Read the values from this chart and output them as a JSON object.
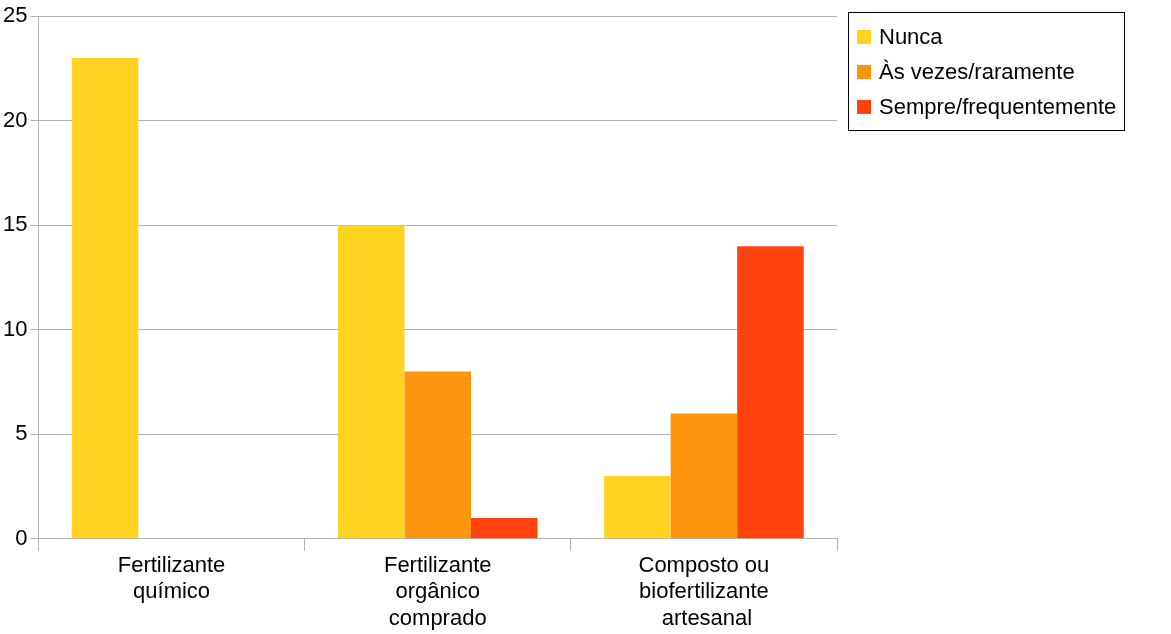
{
  "chart_data": {
    "type": "bar",
    "categories": [
      "Fertilizante\nquímico",
      "Fertilizante\norgânico\ncomprado",
      "Composto ou\nbiofertilizante\n artesanal"
    ],
    "series": [
      {
        "name": "Nunca",
        "color": "#ffd320",
        "values": [
          23,
          15,
          3
        ]
      },
      {
        "name": "Às vezes/raramente",
        "color": "#ff950e",
        "values": [
          0,
          8,
          6
        ]
      },
      {
        "name": "Sempre/frequentemente",
        "color": "#ff420e",
        "values": [
          0,
          1,
          14
        ]
      }
    ],
    "ylim": [
      0,
      25
    ],
    "yticks": [
      0,
      5,
      10,
      15,
      20,
      25
    ],
    "grid": "y",
    "legend": "top right"
  }
}
